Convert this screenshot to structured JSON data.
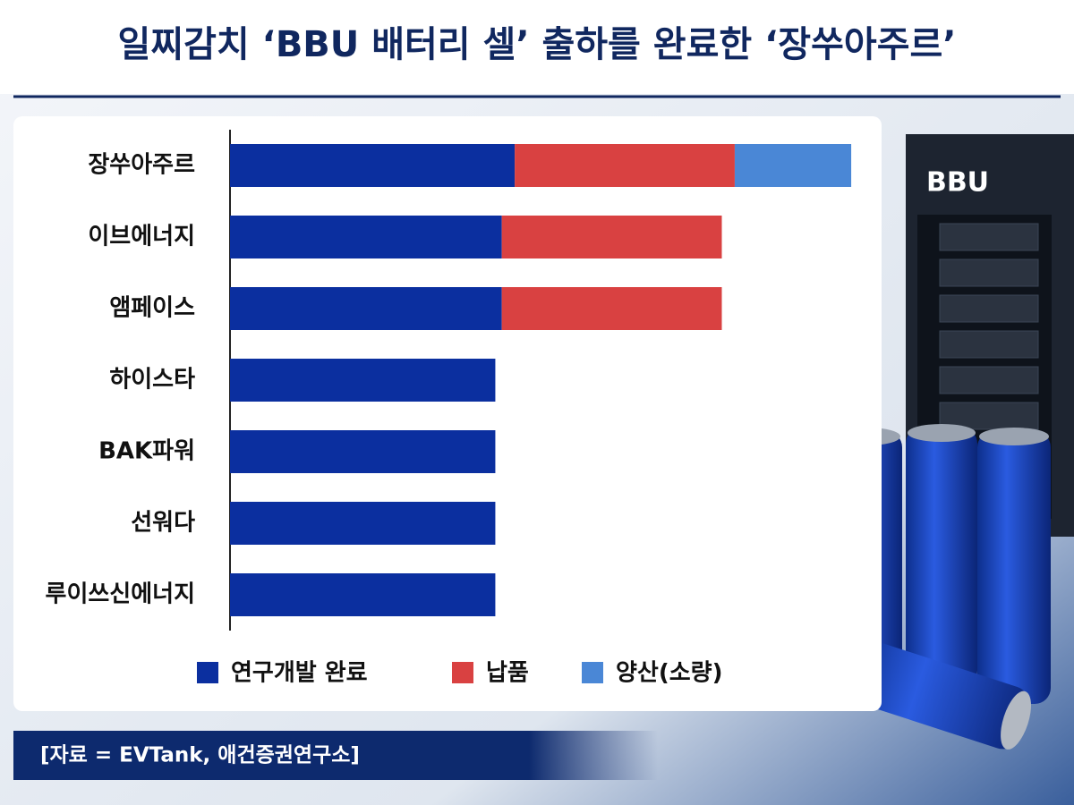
{
  "chart_data": {
    "type": "stacked-bar-horizontal",
    "title": "일찌감치 ‘BBU 배터리 셀’ 출하를 완료한 ‘장쑤아주르’",
    "categories": [
      "장쑤아주르",
      "이브에너지",
      "앰페이스",
      "하이스타",
      "BAK파워",
      "선워다",
      "루이쓰신에너지"
    ],
    "series": [
      {
        "name": "연구개발 완료",
        "color": "#0b2f9f",
        "values": [
          44,
          42,
          42,
          41,
          41,
          41,
          41
        ]
      },
      {
        "name": "납품",
        "color": "#d94141",
        "values": [
          34,
          34,
          34,
          null,
          null,
          null,
          null
        ]
      },
      {
        "name": "양산(소량)",
        "color": "#4a87d6",
        "values": [
          18,
          null,
          null,
          null,
          null,
          null,
          null
        ]
      }
    ],
    "xlim": [
      0,
      100
    ],
    "source": "[자료 =  EVTank, 애건증권연구소]",
    "illustration_label": "BBU"
  }
}
